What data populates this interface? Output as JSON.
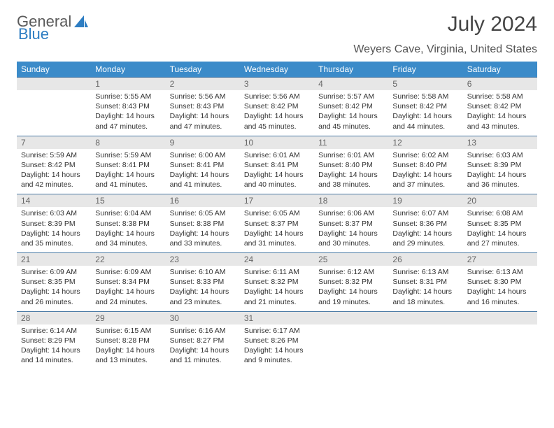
{
  "brand": {
    "part1": "General",
    "part2": "Blue"
  },
  "title": "July 2024",
  "location": "Weyers Cave, Virginia, United States",
  "colors": {
    "header_bg": "#3b8bc9",
    "header_text": "#ffffff",
    "daynum_bg": "#e7e7e7",
    "row_border": "#4a7aa5",
    "body_text": "#333333",
    "title_text": "#444444"
  },
  "day_names": [
    "Sunday",
    "Monday",
    "Tuesday",
    "Wednesday",
    "Thursday",
    "Friday",
    "Saturday"
  ],
  "weeks": [
    [
      {
        "n": "",
        "sr": "",
        "ss": "",
        "dl": ""
      },
      {
        "n": "1",
        "sr": "5:55 AM",
        "ss": "8:43 PM",
        "dl": "14 hours and 47 minutes."
      },
      {
        "n": "2",
        "sr": "5:56 AM",
        "ss": "8:43 PM",
        "dl": "14 hours and 47 minutes."
      },
      {
        "n": "3",
        "sr": "5:56 AM",
        "ss": "8:42 PM",
        "dl": "14 hours and 45 minutes."
      },
      {
        "n": "4",
        "sr": "5:57 AM",
        "ss": "8:42 PM",
        "dl": "14 hours and 45 minutes."
      },
      {
        "n": "5",
        "sr": "5:58 AM",
        "ss": "8:42 PM",
        "dl": "14 hours and 44 minutes."
      },
      {
        "n": "6",
        "sr": "5:58 AM",
        "ss": "8:42 PM",
        "dl": "14 hours and 43 minutes."
      }
    ],
    [
      {
        "n": "7",
        "sr": "5:59 AM",
        "ss": "8:42 PM",
        "dl": "14 hours and 42 minutes."
      },
      {
        "n": "8",
        "sr": "5:59 AM",
        "ss": "8:41 PM",
        "dl": "14 hours and 41 minutes."
      },
      {
        "n": "9",
        "sr": "6:00 AM",
        "ss": "8:41 PM",
        "dl": "14 hours and 41 minutes."
      },
      {
        "n": "10",
        "sr": "6:01 AM",
        "ss": "8:41 PM",
        "dl": "14 hours and 40 minutes."
      },
      {
        "n": "11",
        "sr": "6:01 AM",
        "ss": "8:40 PM",
        "dl": "14 hours and 38 minutes."
      },
      {
        "n": "12",
        "sr": "6:02 AM",
        "ss": "8:40 PM",
        "dl": "14 hours and 37 minutes."
      },
      {
        "n": "13",
        "sr": "6:03 AM",
        "ss": "8:39 PM",
        "dl": "14 hours and 36 minutes."
      }
    ],
    [
      {
        "n": "14",
        "sr": "6:03 AM",
        "ss": "8:39 PM",
        "dl": "14 hours and 35 minutes."
      },
      {
        "n": "15",
        "sr": "6:04 AM",
        "ss": "8:38 PM",
        "dl": "14 hours and 34 minutes."
      },
      {
        "n": "16",
        "sr": "6:05 AM",
        "ss": "8:38 PM",
        "dl": "14 hours and 33 minutes."
      },
      {
        "n": "17",
        "sr": "6:05 AM",
        "ss": "8:37 PM",
        "dl": "14 hours and 31 minutes."
      },
      {
        "n": "18",
        "sr": "6:06 AM",
        "ss": "8:37 PM",
        "dl": "14 hours and 30 minutes."
      },
      {
        "n": "19",
        "sr": "6:07 AM",
        "ss": "8:36 PM",
        "dl": "14 hours and 29 minutes."
      },
      {
        "n": "20",
        "sr": "6:08 AM",
        "ss": "8:35 PM",
        "dl": "14 hours and 27 minutes."
      }
    ],
    [
      {
        "n": "21",
        "sr": "6:09 AM",
        "ss": "8:35 PM",
        "dl": "14 hours and 26 minutes."
      },
      {
        "n": "22",
        "sr": "6:09 AM",
        "ss": "8:34 PM",
        "dl": "14 hours and 24 minutes."
      },
      {
        "n": "23",
        "sr": "6:10 AM",
        "ss": "8:33 PM",
        "dl": "14 hours and 23 minutes."
      },
      {
        "n": "24",
        "sr": "6:11 AM",
        "ss": "8:32 PM",
        "dl": "14 hours and 21 minutes."
      },
      {
        "n": "25",
        "sr": "6:12 AM",
        "ss": "8:32 PM",
        "dl": "14 hours and 19 minutes."
      },
      {
        "n": "26",
        "sr": "6:13 AM",
        "ss": "8:31 PM",
        "dl": "14 hours and 18 minutes."
      },
      {
        "n": "27",
        "sr": "6:13 AM",
        "ss": "8:30 PM",
        "dl": "14 hours and 16 minutes."
      }
    ],
    [
      {
        "n": "28",
        "sr": "6:14 AM",
        "ss": "8:29 PM",
        "dl": "14 hours and 14 minutes."
      },
      {
        "n": "29",
        "sr": "6:15 AM",
        "ss": "8:28 PM",
        "dl": "14 hours and 13 minutes."
      },
      {
        "n": "30",
        "sr": "6:16 AM",
        "ss": "8:27 PM",
        "dl": "14 hours and 11 minutes."
      },
      {
        "n": "31",
        "sr": "6:17 AM",
        "ss": "8:26 PM",
        "dl": "14 hours and 9 minutes."
      },
      {
        "n": "",
        "sr": "",
        "ss": "",
        "dl": ""
      },
      {
        "n": "",
        "sr": "",
        "ss": "",
        "dl": ""
      },
      {
        "n": "",
        "sr": "",
        "ss": "",
        "dl": ""
      }
    ]
  ],
  "labels": {
    "sunrise": "Sunrise:",
    "sunset": "Sunset:",
    "daylight": "Daylight:"
  }
}
